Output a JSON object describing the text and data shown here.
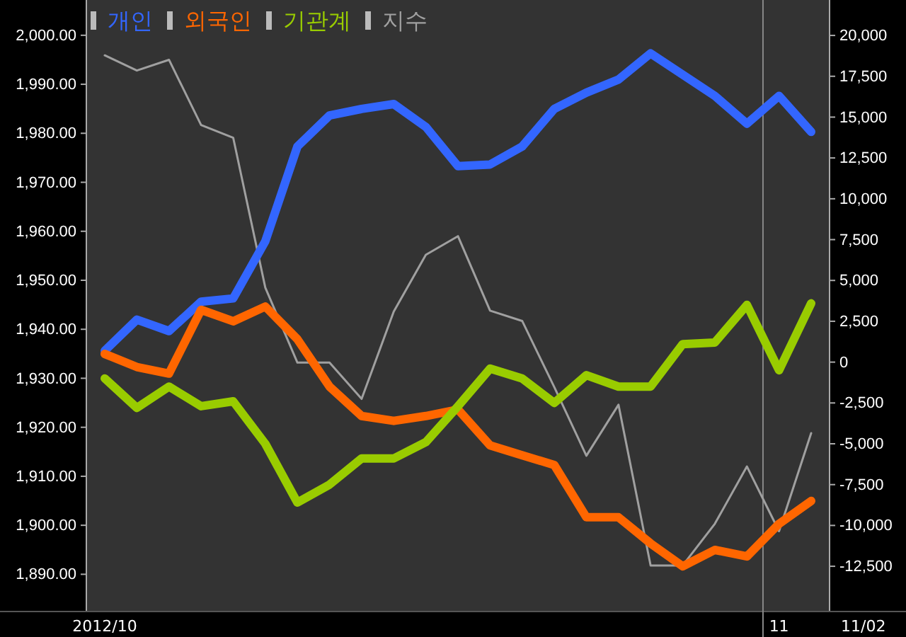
{
  "chart_data": {
    "type": "line",
    "categories": [
      "2012/10",
      null,
      null,
      null,
      null,
      null,
      null,
      null,
      null,
      null,
      null,
      null,
      null,
      null,
      null,
      null,
      null,
      null,
      null,
      null,
      null,
      "11",
      null
    ],
    "series": [
      {
        "name": "개인",
        "color": "#3366ff",
        "axis": "y2",
        "values": [
          700,
          2600,
          1900,
          3700,
          3900,
          7400,
          13200,
          15100,
          15500,
          15800,
          14400,
          12000,
          12100,
          13200,
          15500,
          16500,
          17300,
          18900,
          17600,
          16300,
          14600,
          16300,
          14100
        ]
      },
      {
        "name": "외국인",
        "color": "#ff6600",
        "axis": "y2",
        "values": [
          500,
          -300,
          -700,
          3200,
          2500,
          3400,
          1400,
          -1500,
          -3300,
          -3600,
          -3300,
          -2900,
          -5100,
          -5700,
          -6300,
          -9500,
          -9500,
          -11100,
          -12500,
          -11500,
          -11900,
          -9900,
          -8500
        ]
      },
      {
        "name": "기관계",
        "color": "#99cc00",
        "axis": "y2",
        "values": [
          -1000,
          -2800,
          -1500,
          -2700,
          -2400,
          -5000,
          -8600,
          -7500,
          -5900,
          -5900,
          -4900,
          -2700,
          -400,
          -1000,
          -2500,
          -800,
          -1500,
          -1500,
          1100,
          1200,
          3500,
          -500,
          3600
        ]
      },
      {
        "name": "지수",
        "color": "#a0a0a0",
        "axis": "y",
        "values": [
          1995.9,
          1992.8,
          1995,
          1981.7,
          1979.1,
          1948.5,
          1933.2,
          1933.2,
          1925.8,
          1943.6,
          1955.2,
          1959,
          1943.8,
          1941.7,
          1928.2,
          1914.2,
          1924.6,
          1891.8,
          1891.8,
          1900.3,
          1912,
          1898.8,
          1918.8
        ]
      }
    ],
    "ylim": [
      1882.4,
      2007.2
    ],
    "yticks": [
      {
        "value": 1890,
        "label": "1,890.00"
      },
      {
        "value": 1900,
        "label": "1,900.00"
      },
      {
        "value": 1910,
        "label": "1,910.00"
      },
      {
        "value": 1920,
        "label": "1,920.00"
      },
      {
        "value": 1930,
        "label": "1,930.00"
      },
      {
        "value": 1940,
        "label": "1,940.00"
      },
      {
        "value": 1950,
        "label": "1,950.00"
      },
      {
        "value": 1960,
        "label": "1,960.00"
      },
      {
        "value": 1970,
        "label": "1,970.00"
      },
      {
        "value": 1980,
        "label": "1,980.00"
      },
      {
        "value": 1990,
        "label": "1,990.00"
      },
      {
        "value": 2000,
        "label": "2,000.00"
      }
    ],
    "y2lim": [
      -15270,
      22170
    ],
    "y2ticks": [
      {
        "value": -12500,
        "label": "-12,500"
      },
      {
        "value": -10000,
        "label": "-10,000"
      },
      {
        "value": -7500,
        "label": "-7,500"
      },
      {
        "value": -5000,
        "label": "-5,000"
      },
      {
        "value": -2500,
        "label": "-2,500"
      },
      0,
      {
        "value": 2500,
        "label": "2,500"
      },
      {
        "value": 5000,
        "label": "5,000"
      },
      {
        "value": 7500,
        "label": "7,500"
      },
      {
        "value": 10000,
        "label": "10,000"
      },
      {
        "value": 12500,
        "label": "12,500"
      },
      {
        "value": 15000,
        "label": "15,000"
      },
      {
        "value": 17500,
        "label": "17,500"
      },
      {
        "value": 20000,
        "label": "20,000"
      }
    ],
    "annotations": [
      "11/02"
    ],
    "legend": "top left",
    "grid": false,
    "marker": "none",
    "line_style": "solid"
  }
}
